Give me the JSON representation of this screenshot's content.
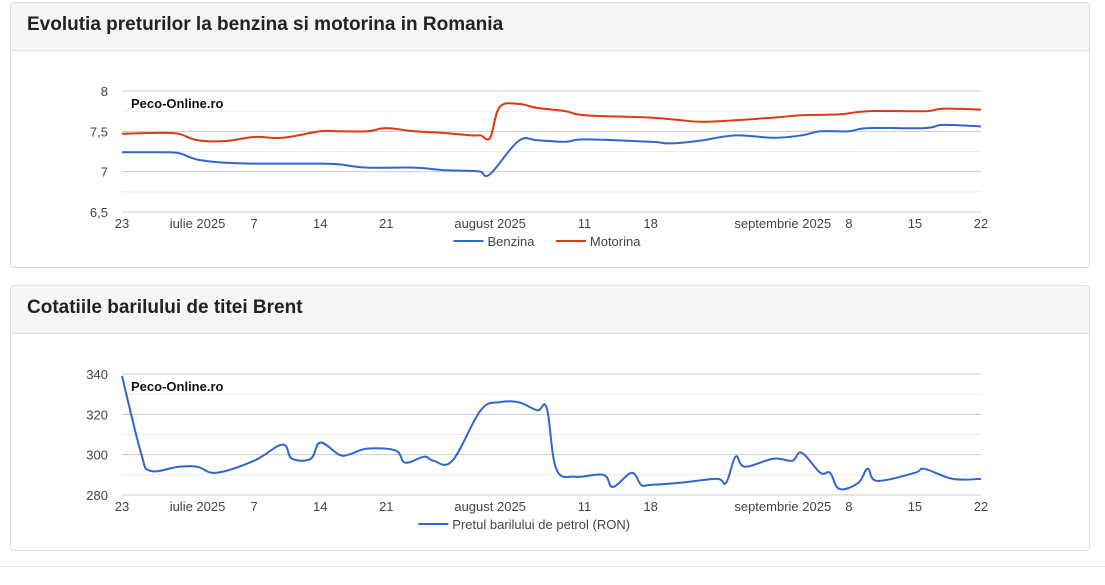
{
  "panels": [
    {
      "title": "Evolutia preturilor la benzina si motorina in Romania",
      "watermark": "Peco-Online.ro",
      "yticks": [
        "8",
        "7,5",
        "7",
        "6,5"
      ],
      "xticks": [
        "23",
        "iulie 2025",
        "7",
        "14",
        "21",
        "august 2025",
        "11",
        "18",
        "septembrie 2025",
        "8",
        "15",
        "22"
      ],
      "legend": [
        "Benzina",
        "Motorina"
      ]
    },
    {
      "title": "Cotatiile barilului de titei Brent",
      "watermark": "Peco-Online.ro",
      "yticks": [
        "340",
        "320",
        "300",
        "280"
      ],
      "xticks": [
        "23",
        "iulie 2025",
        "7",
        "14",
        "21",
        "august 2025",
        "11",
        "18",
        "septembrie 2025",
        "8",
        "15",
        "22"
      ],
      "legend": [
        "Pretul barilului de petrol (RON)"
      ]
    }
  ],
  "colors": {
    "benzina": "#3366cc",
    "motorina": "#dc3912",
    "brent": "#3366cc",
    "grid": "#e0e0e0"
  },
  "chart_data": [
    {
      "type": "line",
      "title": "Evolutia preturilor la benzina si motorina in Romania",
      "ylim": [
        6.5,
        8
      ],
      "yticks": [
        8,
        7.5,
        7,
        6.5
      ],
      "xlim": [
        "2025-06-23",
        "2025-09-22"
      ],
      "xtick_labels": [
        "23",
        "iulie 2025",
        "7",
        "14",
        "21",
        "august 2025",
        "11",
        "18",
        "septembrie 2025",
        "8",
        "15",
        "22"
      ],
      "legend": "bottom",
      "grid": true,
      "series": [
        {
          "name": "Benzina",
          "x": [
            "2025-06-23",
            "2025-06-27",
            "2025-06-29",
            "2025-07-01",
            "2025-07-04",
            "2025-07-07",
            "2025-07-14",
            "2025-07-16",
            "2025-07-19",
            "2025-07-24",
            "2025-07-27",
            "2025-07-30",
            "2025-07-31",
            "2025-08-01",
            "2025-08-04",
            "2025-08-06",
            "2025-08-09",
            "2025-08-11",
            "2025-08-18",
            "2025-08-20",
            "2025-08-23",
            "2025-08-27",
            "2025-08-31",
            "2025-09-03",
            "2025-09-05",
            "2025-09-08",
            "2025-09-10",
            "2025-09-16",
            "2025-09-18",
            "2025-09-22"
          ],
          "values": [
            7.24,
            7.24,
            7.23,
            7.15,
            7.11,
            7.1,
            7.1,
            7.09,
            7.05,
            7.05,
            7.02,
            7.01,
            7.0,
            6.97,
            7.38,
            7.39,
            7.37,
            7.4,
            7.37,
            7.35,
            7.38,
            7.45,
            7.42,
            7.45,
            7.5,
            7.5,
            7.54,
            7.54,
            7.58,
            7.56
          ]
        },
        {
          "name": "Motorina",
          "x": [
            "2025-06-23",
            "2025-06-27",
            "2025-06-29",
            "2025-07-01",
            "2025-07-04",
            "2025-07-07",
            "2025-07-10",
            "2025-07-14",
            "2025-07-16",
            "2025-07-19",
            "2025-07-21",
            "2025-07-24",
            "2025-07-27",
            "2025-07-30",
            "2025-07-31",
            "2025-08-01",
            "2025-08-02",
            "2025-08-04",
            "2025-08-06",
            "2025-08-09",
            "2025-08-11",
            "2025-08-18",
            "2025-08-21",
            "2025-08-24",
            "2025-08-31",
            "2025-09-03",
            "2025-09-07",
            "2025-09-10",
            "2025-09-16",
            "2025-09-18",
            "2025-09-22"
          ],
          "values": [
            7.47,
            7.48,
            7.47,
            7.39,
            7.38,
            7.43,
            7.42,
            7.5,
            7.5,
            7.5,
            7.54,
            7.5,
            7.48,
            7.45,
            7.45,
            7.42,
            7.8,
            7.84,
            7.79,
            7.75,
            7.7,
            7.67,
            7.64,
            7.62,
            7.67,
            7.7,
            7.71,
            7.75,
            7.75,
            7.78,
            7.77
          ]
        }
      ]
    },
    {
      "type": "line",
      "title": "Cotatiile barilului de titei Brent",
      "ylim": [
        280,
        340
      ],
      "yticks": [
        340,
        320,
        300,
        280
      ],
      "xlim": [
        "2025-06-23",
        "2025-09-22"
      ],
      "xtick_labels": [
        "23",
        "iulie 2025",
        "7",
        "14",
        "21",
        "august 2025",
        "11",
        "18",
        "septembrie 2025",
        "8",
        "15",
        "22"
      ],
      "legend": "bottom",
      "grid": true,
      "series": [
        {
          "name": "Pretul barilului de petrol (RON)",
          "x": [
            "2025-06-23",
            "2025-06-25",
            "2025-06-26",
            "2025-06-29",
            "2025-07-01",
            "2025-07-03",
            "2025-07-07",
            "2025-07-10",
            "2025-07-11",
            "2025-07-13",
            "2025-07-14",
            "2025-07-16",
            "2025-07-17",
            "2025-07-19",
            "2025-07-22",
            "2025-07-23",
            "2025-07-25",
            "2025-07-26",
            "2025-07-28",
            "2025-07-31",
            "2025-08-02",
            "2025-08-04",
            "2025-08-06",
            "2025-08-07",
            "2025-08-08",
            "2025-08-10",
            "2025-08-13",
            "2025-08-14",
            "2025-08-16",
            "2025-08-17",
            "2025-08-18",
            "2025-08-21",
            "2025-08-25",
            "2025-08-26",
            "2025-08-27",
            "2025-08-28",
            "2025-08-31",
            "2025-09-02",
            "2025-09-03",
            "2025-09-05",
            "2025-09-06",
            "2025-09-07",
            "2025-09-09",
            "2025-09-10",
            "2025-09-11",
            "2025-09-15",
            "2025-09-16",
            "2025-09-19",
            "2025-09-22"
          ],
          "values": [
            339,
            301,
            292,
            294,
            294,
            291,
            297,
            305,
            298,
            298,
            306,
            300,
            300,
            303,
            302,
            296,
            299,
            297,
            297,
            322,
            326,
            326,
            322,
            323,
            293,
            289,
            290,
            284,
            291,
            285,
            285,
            286,
            288,
            286,
            299,
            294,
            298,
            297,
            301,
            291,
            291,
            283,
            286,
            293,
            287,
            291,
            293,
            288,
            288
          ]
        }
      ]
    }
  ]
}
